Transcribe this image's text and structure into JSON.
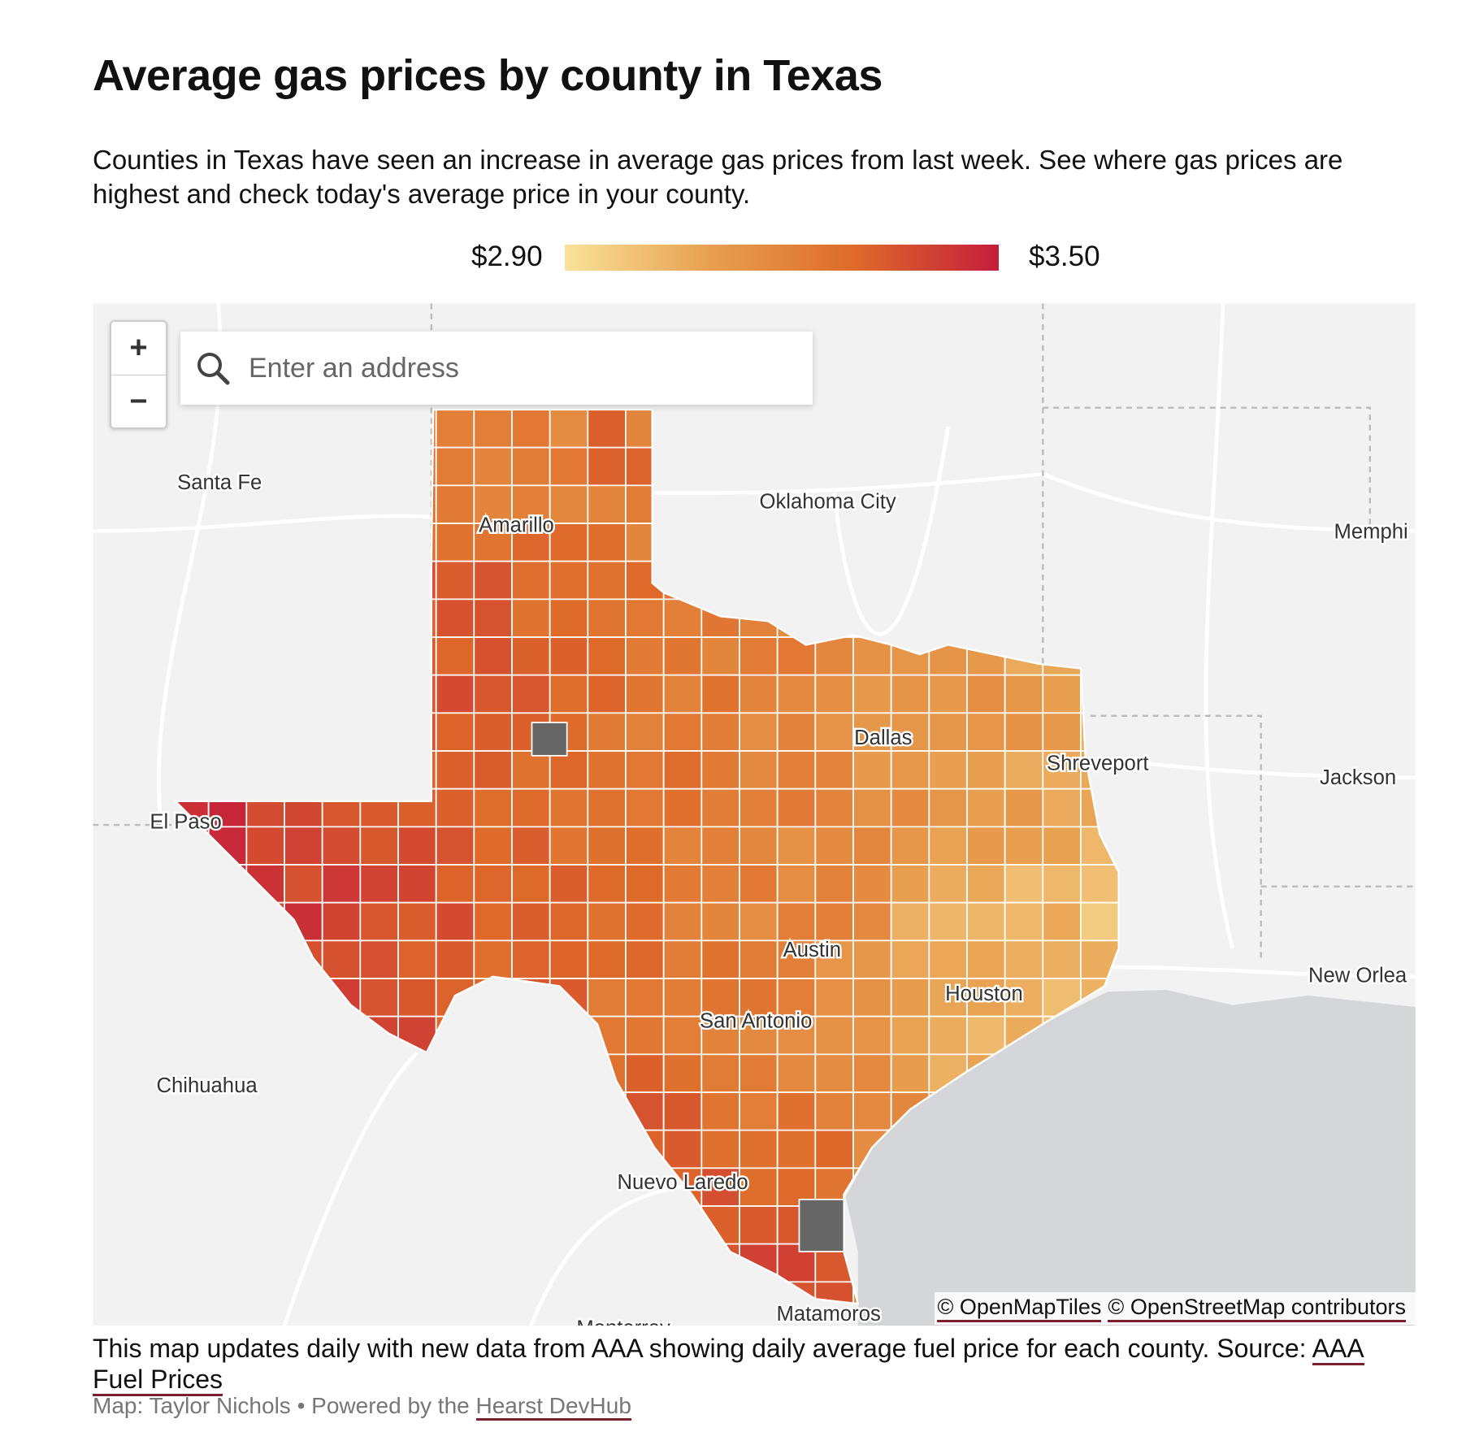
{
  "title": "Average gas prices by county in Texas",
  "description": "Counties in Texas have seen an increase in average gas prices from last week. See where gas prices are highest and check today's average price in your county.",
  "legend": {
    "min_label": "$2.90",
    "max_label": "$3.50",
    "colors": [
      "#f9e29a",
      "#e8a050",
      "#de6a2a",
      "#c41e3a"
    ]
  },
  "map": {
    "zoom_in": "+",
    "zoom_out": "−",
    "search_placeholder": "Enter an address",
    "search_icon": "search-icon",
    "no_data_color": "#666666",
    "labels": {
      "santa_fe": "Santa Fe",
      "oklahoma_city": "Oklahoma City",
      "memphis": "Memphi",
      "amarillo": "Amarillo",
      "dallas": "Dallas",
      "shreveport": "Shreveport",
      "jackson": "Jackson",
      "el_paso": "El Paso",
      "austin": "Austin",
      "new_orleans": "New Orlea",
      "houston": "Houston",
      "san_antonio": "San Antonio",
      "chihuahua": "Chihuahua",
      "nuevo_laredo": "Nuevo Laredo",
      "matamoros": "Matamoros",
      "monterrey": "Monterrey"
    },
    "attribution": {
      "openmaptiles": "© OpenMapTiles",
      "openstreetmap": "© OpenStreetMap contributors"
    }
  },
  "footer": {
    "note": "This map updates daily with new data from AAA showing daily average fuel price for each county. Source: ",
    "source_link": "AAA Fuel Prices",
    "credit": "Map: Taylor Nichols • Powered by the ",
    "credit_link": "Hearst DevHub"
  }
}
